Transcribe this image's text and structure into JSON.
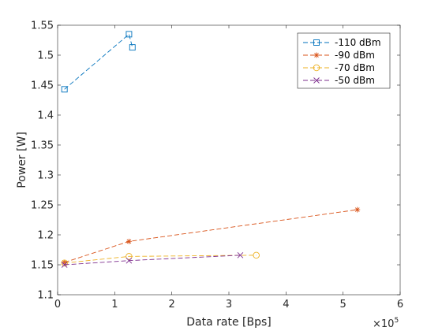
{
  "chart_data": {
    "type": "line",
    "xlabel": "Data rate [Bps]",
    "ylabel": "Power [W]",
    "x_exponent": "×10",
    "x_exponent_power": "5",
    "xlim": [
      0,
      600000
    ],
    "ylim": [
      1.1,
      1.55
    ],
    "x_ticks": [
      0,
      100000,
      200000,
      300000,
      400000,
      500000,
      600000
    ],
    "x_tick_labels": [
      "0",
      "1",
      "2",
      "3",
      "4",
      "5",
      "6"
    ],
    "y_ticks": [
      1.1,
      1.15,
      1.2,
      1.25,
      1.3,
      1.35,
      1.4,
      1.45,
      1.5,
      1.55
    ],
    "y_tick_labels": [
      "1.1",
      "1.15",
      "1.2",
      "1.25",
      "1.3",
      "1.35",
      "1.4",
      "1.45",
      "1.5",
      "1.55"
    ],
    "grid": false,
    "legend_position": "top-right",
    "series": [
      {
        "name": "-110 dBm",
        "color": "#0072BD",
        "marker": "square",
        "x": [
          12000,
          125000,
          131000
        ],
        "y": [
          1.443,
          1.535,
          1.513
        ]
      },
      {
        "name": "-90 dBm",
        "color": "#D95319",
        "marker": "asterisk",
        "x": [
          12000,
          125000,
          525000
        ],
        "y": [
          1.154,
          1.189,
          1.242
        ]
      },
      {
        "name": "-70 dBm",
        "color": "#EDB120",
        "marker": "circle",
        "x": [
          12000,
          125000,
          348000
        ],
        "y": [
          1.153,
          1.164,
          1.166
        ]
      },
      {
        "name": "-50 dBm",
        "color": "#7E2F8E",
        "marker": "x",
        "x": [
          12000,
          125000,
          320000
        ],
        "y": [
          1.15,
          1.157,
          1.166
        ]
      }
    ]
  }
}
